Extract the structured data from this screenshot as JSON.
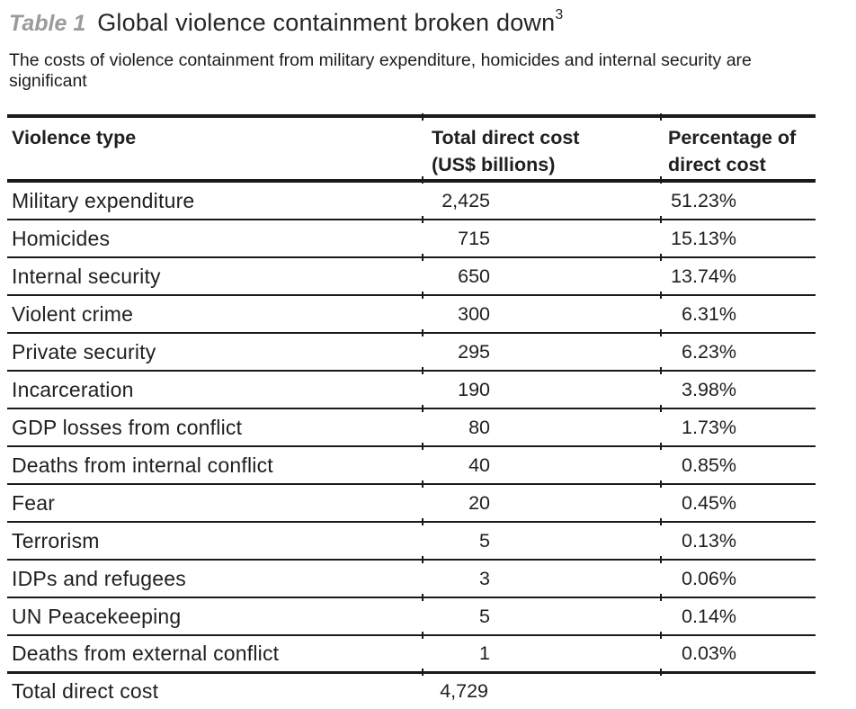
{
  "header": {
    "table_label": "Table 1",
    "title": "Global violence containment broken down",
    "footnote_ref": "3",
    "subtitle": "The costs of violence containment from military expenditure, homicides and internal security are significant"
  },
  "table": {
    "columns": [
      {
        "label": "Violence type"
      },
      {
        "line1": "Total direct cost",
        "line2": "(US$ billions)"
      },
      {
        "line1": "Percentage of",
        "line2": "direct cost"
      }
    ],
    "rows": [
      {
        "type": "Military expenditure",
        "cost": "2,425",
        "pct": "51.23%"
      },
      {
        "type": "Homicides",
        "cost": "715",
        "pct": "15.13%"
      },
      {
        "type": "Internal security",
        "cost": "650",
        "pct": "13.74%"
      },
      {
        "type": "Violent crime",
        "cost": "300",
        "pct": "6.31%"
      },
      {
        "type": "Private security",
        "cost": "295",
        "pct": "6.23%"
      },
      {
        "type": "Incarceration",
        "cost": "190",
        "pct": "3.98%"
      },
      {
        "type": "GDP losses from conflict",
        "cost": "80",
        "pct": "1.73%"
      },
      {
        "type": "Deaths from internal conflict",
        "cost": "40",
        "pct": "0.85%"
      },
      {
        "type": "Fear",
        "cost": "20",
        "pct": "0.45%"
      },
      {
        "type": "Terrorism",
        "cost": "5",
        "pct": "0.13%"
      },
      {
        "type": "IDPs and refugees",
        "cost": "3",
        "pct": "0.06%"
      },
      {
        "type": "UN Peacekeeping",
        "cost": "5",
        "pct": "0.14%"
      },
      {
        "type": "Deaths from external conflict",
        "cost": "1",
        "pct": "0.03%"
      }
    ],
    "total": {
      "label": "Total direct cost",
      "cost": "4,729",
      "pct": ""
    }
  },
  "colors": {
    "rule": "#1a1a1a",
    "text": "#1f1f1f",
    "table_label_gray": "#9b9b9b"
  },
  "chart_data": {
    "type": "table",
    "title": "Table 1 Global violence containment broken down",
    "subtitle": "The costs of violence containment from military expenditure, homicides and internal security are significant",
    "columns": [
      "Violence type",
      "Total direct cost (US$ billions)",
      "Percentage of direct cost"
    ],
    "categories": [
      "Military expenditure",
      "Homicides",
      "Internal security",
      "Violent crime",
      "Private security",
      "Incarceration",
      "GDP losses from conflict",
      "Deaths from internal conflict",
      "Fear",
      "Terrorism",
      "IDPs and refugees",
      "UN Peacekeeping",
      "Deaths from external conflict"
    ],
    "series": [
      {
        "name": "Total direct cost (US$ billions)",
        "values": [
          2425,
          715,
          650,
          300,
          295,
          190,
          80,
          40,
          20,
          5,
          3,
          5,
          1
        ]
      },
      {
        "name": "Percentage of direct cost",
        "values": [
          51.23,
          15.13,
          13.74,
          6.31,
          6.23,
          3.98,
          1.73,
          0.85,
          0.45,
          0.13,
          0.06,
          0.14,
          0.03
        ]
      }
    ],
    "total": {
      "label": "Total direct cost",
      "value": 4729
    }
  }
}
